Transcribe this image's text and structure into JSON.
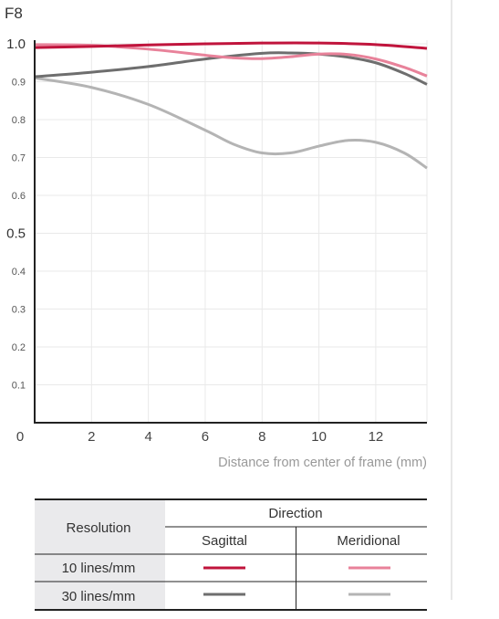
{
  "chart_data": {
    "type": "line",
    "title": "F8",
    "xlabel": "Distance from center of frame (mm)",
    "ylabel": "",
    "xlim": [
      0,
      13.8
    ],
    "ylim": [
      0,
      1.0
    ],
    "x_ticks": [
      {
        "value": 0,
        "label": "0"
      },
      {
        "value": 2,
        "label": "2"
      },
      {
        "value": 4,
        "label": "4"
      },
      {
        "value": 6,
        "label": "6"
      },
      {
        "value": 8,
        "label": "8"
      },
      {
        "value": 10,
        "label": "10"
      },
      {
        "value": 12,
        "label": "12"
      }
    ],
    "y_ticks": [
      {
        "value": 0.1,
        "label": "0.1",
        "major": false
      },
      {
        "value": 0.2,
        "label": "0.2",
        "major": false
      },
      {
        "value": 0.3,
        "label": "0.3",
        "major": false
      },
      {
        "value": 0.4,
        "label": "0.4",
        "major": false
      },
      {
        "value": 0.5,
        "label": "0.5",
        "major": true
      },
      {
        "value": 0.6,
        "label": "0.6",
        "major": false
      },
      {
        "value": 0.7,
        "label": "0.7",
        "major": false
      },
      {
        "value": 0.8,
        "label": "0.8",
        "major": false
      },
      {
        "value": 0.9,
        "label": "0.9",
        "major": false
      },
      {
        "value": 1.0,
        "label": "1.0",
        "major": true
      }
    ],
    "grid": true,
    "series": [
      {
        "color": "#c0143c",
        "x": [
          0,
          2,
          4,
          6,
          8,
          10,
          12,
          13.8
        ],
        "y": [
          0.99,
          0.993,
          0.997,
          1.0,
          1.002,
          1.002,
          0.998,
          0.988
        ]
      },
      {
        "color": "#e8829a",
        "x": [
          0,
          2,
          4,
          6,
          7,
          8,
          9,
          10,
          11,
          12,
          13,
          13.8
        ],
        "y": [
          0.998,
          0.996,
          0.986,
          0.97,
          0.963,
          0.961,
          0.966,
          0.973,
          0.972,
          0.96,
          0.938,
          0.915
        ]
      },
      {
        "color": "#6e6e6e",
        "x": [
          0,
          2,
          4,
          6,
          8,
          9,
          10,
          11,
          12,
          13,
          13.8
        ],
        "y": [
          0.913,
          0.925,
          0.94,
          0.96,
          0.975,
          0.976,
          0.973,
          0.965,
          0.95,
          0.922,
          0.893
        ]
      },
      {
        "color": "#b4b4b4",
        "x": [
          0,
          2,
          4,
          6,
          7,
          8,
          9,
          10,
          11,
          12,
          13,
          13.8
        ],
        "y": [
          0.91,
          0.885,
          0.84,
          0.772,
          0.735,
          0.712,
          0.712,
          0.73,
          0.745,
          0.74,
          0.712,
          0.672
        ]
      }
    ]
  },
  "legend_table": {
    "resolution_header": "Resolution",
    "direction_header": "Direction",
    "sagittal_header": "Sagittal",
    "meridional_header": "Meridional",
    "rows": [
      {
        "label": "10 lines/mm",
        "sagittal_color": "#c0143c",
        "meridional_color": "#e8829a"
      },
      {
        "label": "30 lines/mm",
        "sagittal_color": "#6e6e6e",
        "meridional_color": "#b4b4b4"
      }
    ],
    "header_bg": "#eaeaec"
  }
}
